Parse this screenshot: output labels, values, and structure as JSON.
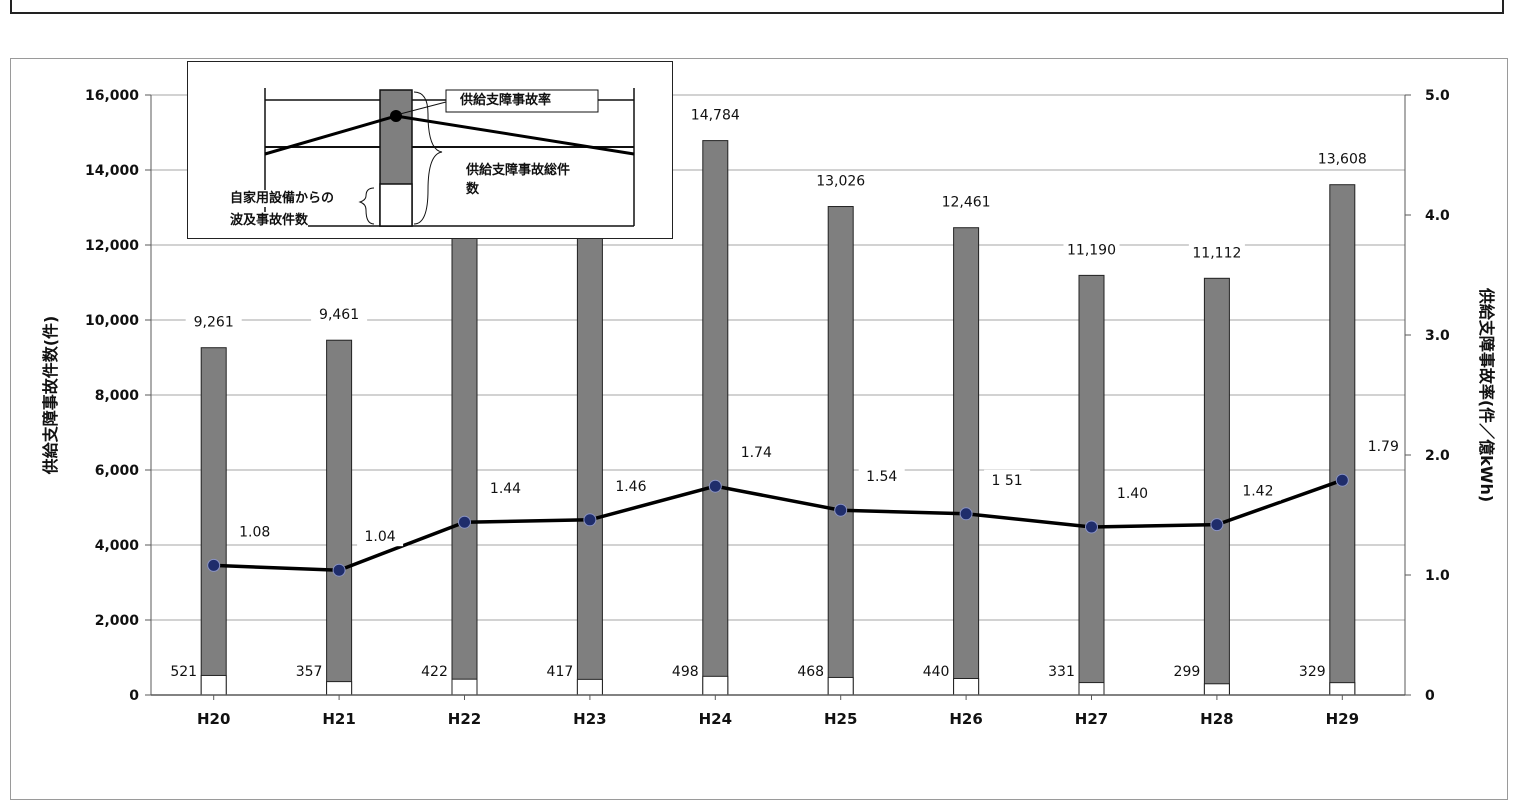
{
  "chart_data": {
    "type": "bar+line",
    "categories": [
      "H20",
      "H21",
      "H22",
      "H23",
      "H24",
      "H25",
      "H26",
      "H27",
      "H28",
      "H29"
    ],
    "series": [
      {
        "name": "供給支障事故総件数",
        "type": "bar",
        "axis": "left",
        "color": "#7f7f7f",
        "values": [
          9261,
          9461,
          12418,
          12534,
          14784,
          13026,
          12461,
          11190,
          11112,
          13608
        ],
        "labels": [
          "9,261",
          "9,461",
          "12,418",
          "12,534",
          "14,784",
          "13,026",
          "12,461",
          "11,190",
          "11,112",
          "13,608"
        ]
      },
      {
        "name": "自家用設備からの波及事故件数",
        "type": "bar",
        "axis": "left",
        "color": "#ffffff",
        "values": [
          521,
          357,
          422,
          417,
          498,
          468,
          440,
          331,
          299,
          329
        ],
        "labels": [
          "521",
          "357",
          "422",
          "417",
          "498",
          "468",
          "440",
          "331",
          "299",
          "329"
        ]
      },
      {
        "name": "供給支障事故率",
        "type": "line",
        "axis": "right",
        "color": "#000000",
        "marker_color": "#1f2d6b",
        "values": [
          1.08,
          1.04,
          1.44,
          1.46,
          1.74,
          1.54,
          1.51,
          1.4,
          1.42,
          1.79
        ],
        "labels": [
          "1.08",
          "1.04",
          "1.44",
          "1.46",
          "1.74",
          "1.54",
          "1 51",
          "1.40",
          "1.42",
          "1.79"
        ]
      }
    ],
    "y_left": {
      "label": "供給支障事故件数(件)",
      "range": [
        0,
        16000
      ],
      "ticks": [
        0,
        2000,
        4000,
        6000,
        8000,
        10000,
        12000,
        14000,
        16000
      ],
      "tick_labels": [
        "0",
        "2,000",
        "4,000",
        "6,000",
        "8,000",
        "10,000",
        "12,000",
        "14,000",
        "16,000"
      ]
    },
    "y_right": {
      "label": "供給支障事故率(件／億kWh)",
      "range": [
        0,
        5
      ],
      "ticks": [
        0,
        1,
        2,
        3,
        4,
        5
      ],
      "tick_labels": [
        "0",
        "1.0",
        "2.0",
        "3.0",
        "4.0",
        "5.0"
      ]
    },
    "grid": true,
    "legend": {
      "placement": "top-left",
      "rate_label": "供給支障事故率",
      "total_label_line1": "供給支障事故総件",
      "total_label_line2": "数",
      "spill_label_line1": "自家用設備からの",
      "spill_label_line2": "波及事故件数"
    }
  }
}
